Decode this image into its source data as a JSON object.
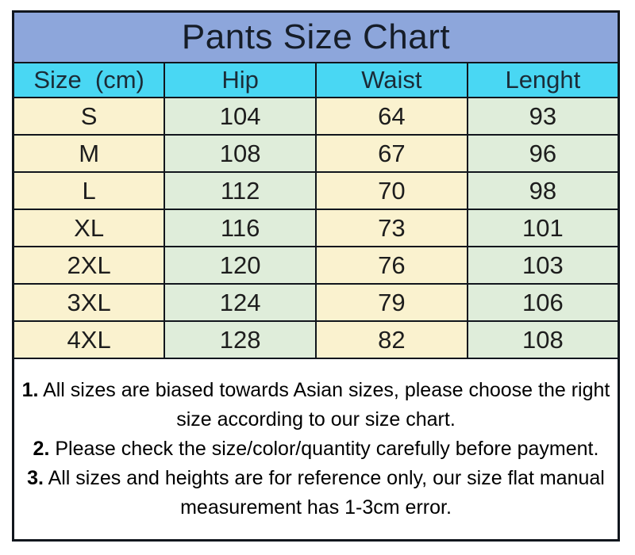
{
  "chart_data": {
    "type": "table",
    "title": "Pants Size Chart",
    "columns": [
      "Size  (cm)",
      "Hip",
      "Waist",
      "Lenght"
    ],
    "rows": [
      [
        "S",
        104,
        64,
        93
      ],
      [
        "M",
        108,
        67,
        96
      ],
      [
        "L",
        112,
        70,
        98
      ],
      [
        "XL",
        116,
        73,
        101
      ],
      [
        "2XL",
        120,
        76,
        103
      ],
      [
        "3XL",
        124,
        79,
        106
      ],
      [
        "4XL",
        128,
        82,
        108
      ]
    ],
    "units": "cm",
    "layout_hints": {
      "column_fill_pattern": [
        "cream",
        "green",
        "cream",
        "green"
      ],
      "grid": "black borders, all cells"
    }
  },
  "notes": [
    {
      "num": "1.",
      "text": " All sizes are biased towards Asian sizes, please choose the right size according to our size chart."
    },
    {
      "num": "2.",
      "text": " Please check the size/color/quantity carefully before payment."
    },
    {
      "num": "3.",
      "text": " All sizes and heights are for reference only, our size flat manual measurement has 1-3cm error."
    }
  ],
  "colors": {
    "title_bg": "#8da6db",
    "title_text": "#161d28",
    "header_bg": "#49d7f3",
    "header_text": "#1b2c38",
    "col_odd": "#faf2cf",
    "col_even": "#dfedda",
    "cell_text": "#1d1d1d",
    "border": "#11161d",
    "notes_bg": "#ffffff"
  }
}
